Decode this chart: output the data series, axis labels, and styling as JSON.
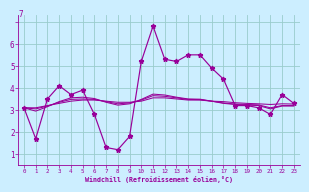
{
  "bg_color": "#cceeff",
  "line_color": "#990099",
  "grid_color": "#99cccc",
  "xlabel": "Windchill (Refroidissement éolien,°C)",
  "xlim": [
    -0.5,
    23.5
  ],
  "ylim": [
    0.5,
    7.3
  ],
  "yticks": [
    1,
    2,
    3,
    4,
    5,
    6,
    7
  ],
  "xticks": [
    0,
    1,
    2,
    3,
    4,
    5,
    6,
    7,
    8,
    9,
    10,
    11,
    12,
    13,
    14,
    15,
    16,
    17,
    18,
    19,
    20,
    21,
    22,
    23
  ],
  "xtick_labels": [
    "0",
    "1",
    "2",
    "3",
    "4",
    "5",
    "6",
    "7",
    "8",
    "9",
    "10",
    "11",
    "12",
    "13",
    "14",
    "15",
    "16",
    "17",
    "18",
    "19",
    "20",
    "21",
    "22",
    "23"
  ],
  "series_main": [
    3.1,
    1.7,
    3.5,
    4.1,
    3.7,
    3.9,
    2.8,
    1.3,
    1.2,
    1.8,
    5.2,
    6.8,
    5.3,
    5.2,
    5.5,
    5.5,
    4.9,
    4.4,
    3.2,
    3.2,
    3.1,
    2.8,
    3.7,
    3.3
  ],
  "series_trend": [
    [
      3.1,
      3.1,
      3.2,
      3.3,
      3.4,
      3.45,
      3.45,
      3.4,
      3.35,
      3.35,
      3.4,
      3.55,
      3.55,
      3.5,
      3.45,
      3.45,
      3.4,
      3.38,
      3.33,
      3.3,
      3.28,
      3.25,
      3.28,
      3.27
    ],
    [
      3.1,
      3.05,
      3.18,
      3.35,
      3.48,
      3.5,
      3.48,
      3.38,
      3.28,
      3.32,
      3.45,
      3.65,
      3.62,
      3.55,
      3.48,
      3.47,
      3.4,
      3.32,
      3.27,
      3.25,
      3.23,
      3.1,
      3.2,
      3.2
    ],
    [
      3.1,
      2.95,
      3.15,
      3.38,
      3.55,
      3.58,
      3.52,
      3.35,
      3.22,
      3.28,
      3.48,
      3.72,
      3.68,
      3.58,
      3.5,
      3.49,
      3.4,
      3.3,
      3.25,
      3.22,
      3.2,
      3.05,
      3.18,
      3.18
    ]
  ]
}
